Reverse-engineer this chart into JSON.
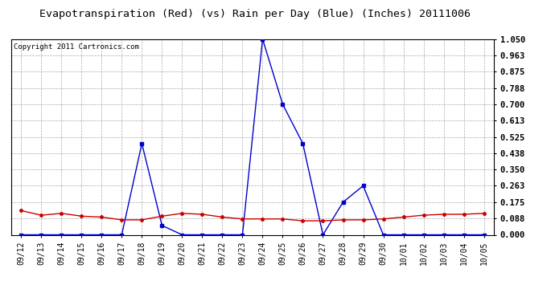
{
  "title": "Evapotranspiration (Red) (vs) Rain per Day (Blue) (Inches) 20111006",
  "copyright": "Copyright 2011 Cartronics.com",
  "x_labels": [
    "09/12",
    "09/13",
    "09/14",
    "09/15",
    "09/16",
    "09/17",
    "09/18",
    "09/19",
    "09/20",
    "09/21",
    "09/22",
    "09/23",
    "09/24",
    "09/25",
    "09/26",
    "09/27",
    "09/28",
    "09/29",
    "09/30",
    "10/01",
    "10/02",
    "10/03",
    "10/04",
    "10/05"
  ],
  "red_data": [
    0.13,
    0.105,
    0.115,
    0.1,
    0.095,
    0.08,
    0.08,
    0.1,
    0.115,
    0.11,
    0.095,
    0.085,
    0.085,
    0.085,
    0.075,
    0.075,
    0.08,
    0.08,
    0.085,
    0.095,
    0.105,
    0.11,
    0.11,
    0.115
  ],
  "blue_data": [
    0.0,
    0.0,
    0.0,
    0.0,
    0.0,
    0.0,
    0.49,
    0.05,
    0.0,
    0.0,
    0.0,
    0.0,
    1.05,
    0.7,
    0.49,
    0.0,
    0.175,
    0.263,
    0.0,
    0.0,
    0.0,
    0.0,
    0.0,
    0.0
  ],
  "ylim_min": 0.0,
  "ylim_max": 1.05,
  "yticks": [
    0.0,
    0.088,
    0.175,
    0.263,
    0.35,
    0.438,
    0.525,
    0.613,
    0.7,
    0.788,
    0.875,
    0.963,
    1.05
  ],
  "red_color": "#cc0000",
  "blue_color": "#0000cc",
  "grid_color": "#aaaaaa",
  "bg_color": "#ffffff",
  "title_fontsize": 9.5,
  "copyright_fontsize": 6.5,
  "tick_fontsize": 7,
  "ytick_fontsize": 7.5
}
